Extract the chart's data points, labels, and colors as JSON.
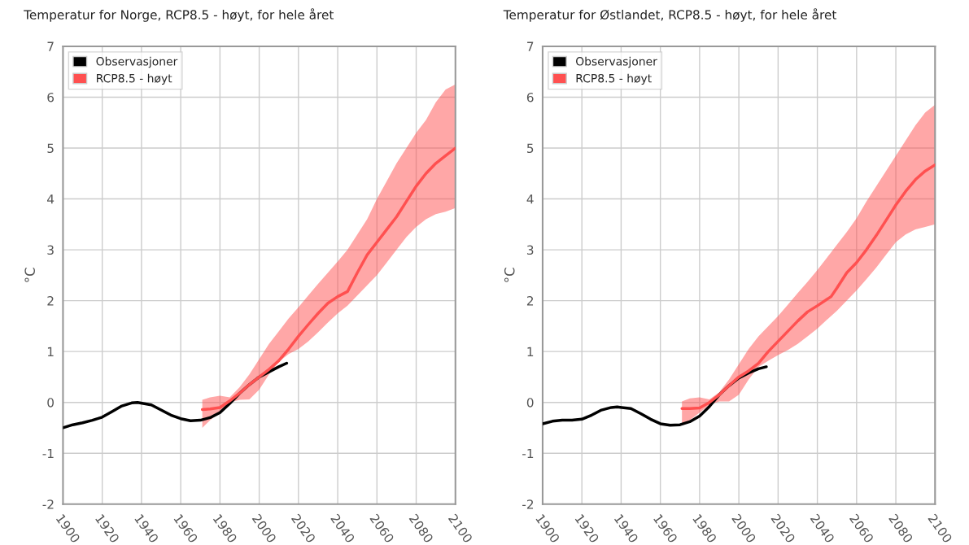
{
  "chart_data": [
    {
      "type": "line",
      "title": "Temperatur for Norge, RCP8.5 - høyt, for hele året",
      "ylabel": "°C",
      "xlim": [
        1900,
        2100
      ],
      "xticks": [
        1900,
        1920,
        1940,
        1960,
        1980,
        2000,
        2020,
        2040,
        2060,
        2080,
        2100
      ],
      "ylim": [
        -2,
        7
      ],
      "yticks": [
        -2,
        -1,
        0,
        1,
        2,
        3,
        4,
        5,
        6,
        7
      ],
      "grid": true,
      "legend": "top left",
      "marker": "none",
      "line_style": "solid",
      "series": [
        {
          "name": "Observasjoner",
          "color": "#000000",
          "x": [
            1900,
            1905,
            1910,
            1915,
            1920,
            1925,
            1930,
            1935,
            1938,
            1945,
            1950,
            1955,
            1960,
            1965,
            1970,
            1975,
            1980,
            1985,
            1990,
            1995,
            2000,
            2005,
            2010,
            2014
          ],
          "values": [
            -0.5,
            -0.44,
            -0.4,
            -0.35,
            -0.29,
            -0.18,
            -0.07,
            -0.01,
            0.0,
            -0.05,
            -0.15,
            -0.25,
            -0.32,
            -0.36,
            -0.35,
            -0.3,
            -0.2,
            -0.02,
            0.18,
            0.35,
            0.5,
            0.6,
            0.7,
            0.77
          ]
        },
        {
          "name": "RCP8.5 - høyt",
          "color": "#ff5050",
          "x": [
            1971,
            1975,
            1980,
            1985,
            1990,
            1995,
            2000,
            2005,
            2010,
            2015,
            2020,
            2025,
            2030,
            2035,
            2040,
            2045,
            2050,
            2055,
            2060,
            2065,
            2070,
            2075,
            2080,
            2085,
            2090,
            2095,
            2100
          ],
          "values": [
            -0.14,
            -0.13,
            -0.1,
            0.03,
            0.18,
            0.35,
            0.5,
            0.65,
            0.82,
            1.05,
            1.3,
            1.53,
            1.75,
            1.95,
            2.08,
            2.18,
            2.55,
            2.9,
            3.15,
            3.4,
            3.65,
            3.95,
            4.25,
            4.5,
            4.7,
            4.85,
            5.0
          ],
          "lower": [
            -0.5,
            -0.35,
            -0.2,
            0.0,
            0.05,
            0.06,
            0.25,
            0.55,
            0.8,
            0.95,
            1.05,
            1.2,
            1.38,
            1.57,
            1.75,
            1.9,
            2.1,
            2.3,
            2.5,
            2.75,
            3.0,
            3.25,
            3.45,
            3.6,
            3.7,
            3.75,
            3.82
          ],
          "upper": [
            0.05,
            0.1,
            0.13,
            0.1,
            0.3,
            0.55,
            0.85,
            1.15,
            1.4,
            1.65,
            1.87,
            2.1,
            2.33,
            2.55,
            2.77,
            3.0,
            3.3,
            3.6,
            4.0,
            4.35,
            4.7,
            5.0,
            5.3,
            5.55,
            5.9,
            6.15,
            6.25
          ]
        }
      ]
    },
    {
      "type": "line",
      "title": "Temperatur for Østlandet, RCP8.5 - høyt, for hele året",
      "ylabel": "°C",
      "xlim": [
        1900,
        2100
      ],
      "xticks": [
        1900,
        1920,
        1940,
        1960,
        1980,
        2000,
        2020,
        2040,
        2060,
        2080,
        2100
      ],
      "ylim": [
        -2,
        7
      ],
      "yticks": [
        -2,
        -1,
        0,
        1,
        2,
        3,
        4,
        5,
        6,
        7
      ],
      "grid": true,
      "legend": "top left",
      "marker": "none",
      "line_style": "solid",
      "series": [
        {
          "name": "Observasjoner",
          "color": "#000000",
          "x": [
            1900,
            1905,
            1910,
            1915,
            1920,
            1925,
            1930,
            1935,
            1938,
            1945,
            1950,
            1955,
            1960,
            1965,
            1970,
            1975,
            1980,
            1985,
            1990,
            1995,
            2000,
            2005,
            2010,
            2014
          ],
          "values": [
            -0.42,
            -0.37,
            -0.35,
            -0.35,
            -0.33,
            -0.25,
            -0.15,
            -0.1,
            -0.09,
            -0.12,
            -0.22,
            -0.33,
            -0.42,
            -0.45,
            -0.44,
            -0.38,
            -0.27,
            -0.08,
            0.15,
            0.33,
            0.48,
            0.58,
            0.66,
            0.7
          ]
        },
        {
          "name": "RCP8.5 - høyt",
          "color": "#ff5050",
          "x": [
            1971,
            1975,
            1980,
            1985,
            1990,
            1995,
            2000,
            2005,
            2010,
            2015,
            2020,
            2025,
            2030,
            2035,
            2040,
            2047,
            2050,
            2055,
            2060,
            2065,
            2070,
            2075,
            2080,
            2085,
            2090,
            2095,
            2100
          ],
          "values": [
            -0.12,
            -0.12,
            -0.11,
            0.0,
            0.15,
            0.33,
            0.5,
            0.62,
            0.77,
            1.0,
            1.2,
            1.4,
            1.6,
            1.78,
            1.9,
            2.08,
            2.25,
            2.55,
            2.75,
            3.0,
            3.28,
            3.58,
            3.88,
            4.15,
            4.38,
            4.55,
            4.67
          ],
          "lower": [
            -0.45,
            -0.35,
            -0.2,
            -0.05,
            0.02,
            0.02,
            0.15,
            0.45,
            0.7,
            0.82,
            0.93,
            1.03,
            1.15,
            1.3,
            1.45,
            1.7,
            1.8,
            2.0,
            2.2,
            2.42,
            2.65,
            2.9,
            3.15,
            3.3,
            3.4,
            3.45,
            3.5
          ],
          "upper": [
            0.02,
            0.08,
            0.1,
            0.06,
            0.2,
            0.45,
            0.75,
            1.05,
            1.3,
            1.5,
            1.7,
            1.92,
            2.15,
            2.37,
            2.6,
            2.95,
            3.1,
            3.35,
            3.62,
            3.95,
            4.25,
            4.55,
            4.85,
            5.15,
            5.45,
            5.7,
            5.85
          ]
        }
      ]
    }
  ]
}
